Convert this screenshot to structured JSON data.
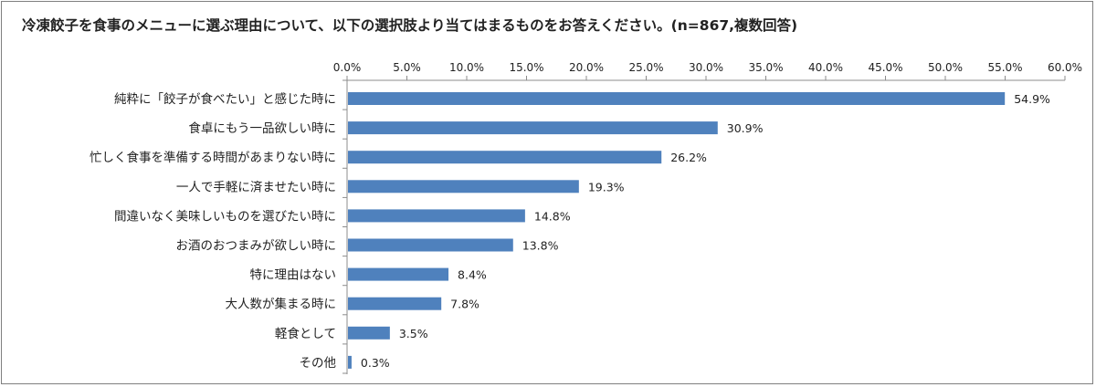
{
  "chart_data": {
    "type": "bar",
    "orientation": "horizontal",
    "title": "冷凍餃子を食事のメニューに選ぶ理由について、以下の選択肢より当てはまるものをお答えください。(n=867,複数回答)",
    "categories": [
      "純粋に「餃子が食べたい」と感じた時に",
      "食卓にもう一品欲しい時に",
      "忙しく食事を準備する時間があまりない時に",
      "一人で手軽に済ませたい時に",
      "間違いなく美味しいものを選びたい時に",
      "お酒のおつまみが欲しい時に",
      "特に理由はない",
      "大人数が集まる時に",
      "軽食として",
      "その他"
    ],
    "values": [
      54.9,
      30.9,
      26.2,
      19.3,
      14.8,
      13.8,
      8.4,
      7.8,
      3.5,
      0.3
    ],
    "value_labels": [
      "54.9%",
      "30.9%",
      "26.2%",
      "19.3%",
      "14.8%",
      "13.8%",
      "8.4%",
      "7.8%",
      "3.5%",
      "0.3%"
    ],
    "x_ticks": [
      0,
      5,
      10,
      15,
      20,
      25,
      30,
      35,
      40,
      45,
      50,
      55,
      60
    ],
    "x_tick_labels": [
      "0.0%",
      "5.0%",
      "10.0%",
      "15.0%",
      "20.0%",
      "25.0%",
      "30.0%",
      "35.0%",
      "40.0%",
      "45.0%",
      "50.0%",
      "55.0%",
      "60.0%"
    ],
    "xlim": [
      0,
      60
    ],
    "xaxis_position": "top",
    "grid": false,
    "bar_color": "#4f81bd",
    "xlabel": "",
    "ylabel": ""
  }
}
